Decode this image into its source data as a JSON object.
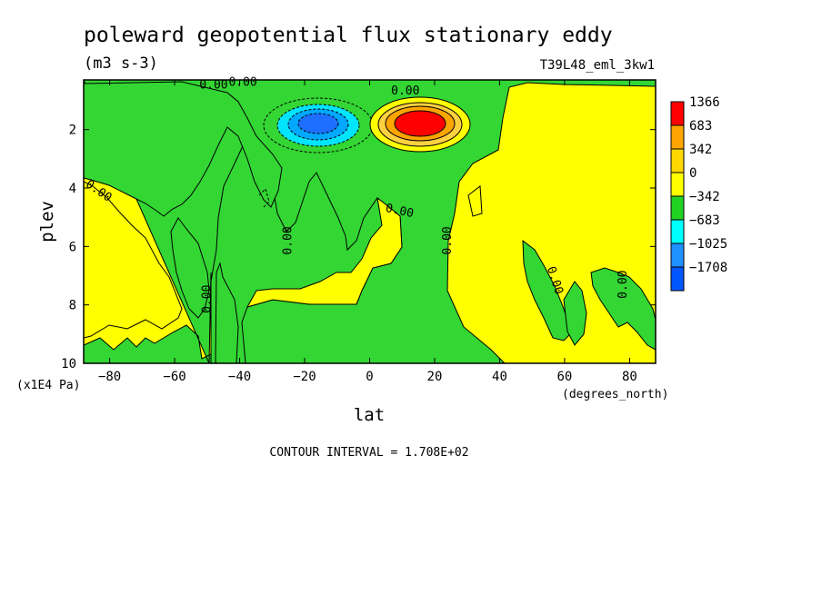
{
  "chart_data": {
    "type": "heatmap",
    "title": "poleward geopotential flux stationary eddy",
    "units": "(m3 s-3)",
    "run": "T39L48_eml_3kw1",
    "xlabel": "lat",
    "x_unit": "(degrees_north)",
    "ylabel": "plev",
    "y_unit": "(x1E4 Pa)",
    "xlim": [
      -88,
      88
    ],
    "ylim": [
      10,
      0.3
    ],
    "x_ticks": [
      -80,
      -60,
      -40,
      -20,
      0,
      20,
      40,
      60,
      80
    ],
    "y_ticks": [
      2,
      4,
      6,
      8,
      10
    ],
    "contour_interval_label": "CONTOUR INTERVAL = 1.708E+02",
    "contour_labels": [
      "0.00",
      "0.00",
      "0.00",
      "0.00",
      "0.00",
      "0.00",
      "0.00",
      "0.00",
      "0.00",
      "0.00"
    ],
    "legend": {
      "levels": [
        "1366",
        "683",
        "342",
        "0",
        "-342",
        "-683",
        "-1025",
        "-1708"
      ],
      "colors": [
        "#ff0000",
        "#ffa500",
        "#ffd700",
        "#ffff00",
        "#22d222",
        "#00ffff",
        "#1e90ff",
        "#0055ff"
      ]
    },
    "fill_colors": {
      "positive": "#ffff00",
      "negative": "#33d633",
      "pos_mid": "#ffd040",
      "pos_high": "#ffa500",
      "max": "#ff0000",
      "neg_mid": "#00e5ff",
      "neg_high": "#00a8ff",
      "min": "#1e6fff"
    },
    "extrema": {
      "max": {
        "lat": 15,
        "plev": 1.75
      },
      "min": {
        "lat": -17,
        "plev": 1.75
      }
    }
  }
}
